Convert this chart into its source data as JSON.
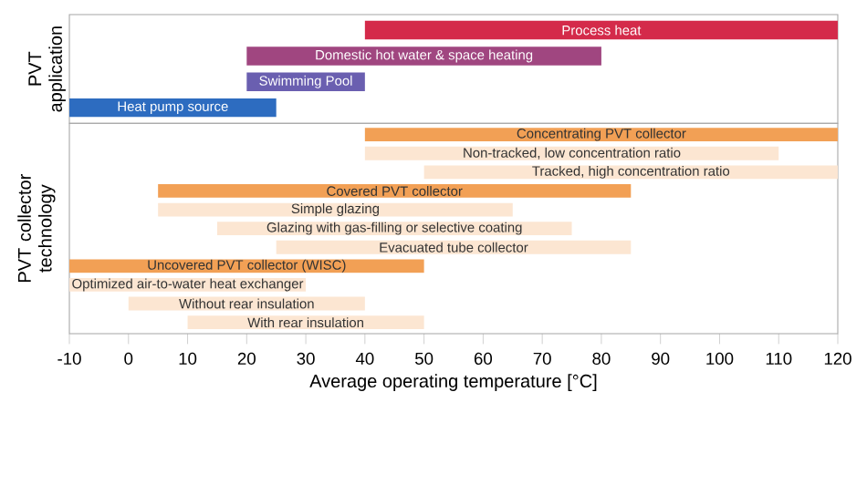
{
  "chart_data": [
    {
      "type": "bar",
      "orientation": "horizontal",
      "ylabel": "PVT application",
      "categories": [
        "Process heat",
        "Domestic hot water & space heating",
        "Swimming Pool",
        "Heat pump source"
      ],
      "base": [
        40,
        20,
        20,
        -10
      ],
      "values": [
        80,
        60,
        20,
        35
      ],
      "colors": [
        "#d42a4a",
        "#a04680",
        "#6a5fb0",
        "#2d6cc0"
      ],
      "xlim": [
        -10,
        120
      ],
      "xticks": [
        -10,
        0,
        10,
        20,
        30,
        40,
        50,
        60,
        70,
        80,
        90,
        100,
        110,
        120
      ],
      "tick_labels": false
    },
    {
      "type": "bar",
      "orientation": "horizontal",
      "ylabel": "PVT collector technology",
      "xlabel": "Average operating temperature [°C]",
      "categories": [
        "Concentrating PVT collector",
        "Non-tracked, low concentration ratio",
        "Tracked, high concentration ratio",
        "Covered PVT collector",
        "Simple glazing",
        "Glazing with gas-filling or selective coating",
        "Evacuated tube collector",
        "Uncovered PVT collector    (WISC)",
        "Optimized air-to-water heat exchanger",
        "Without rear insulation",
        "With rear insulation"
      ],
      "base": [
        40,
        40,
        50,
        5,
        5,
        15,
        25,
        -10,
        -10,
        0,
        10
      ],
      "values": [
        80,
        70,
        70,
        80,
        60,
        60,
        60,
        60,
        40,
        40,
        40
      ],
      "colors": [
        "#f2a055",
        "#fce6d2",
        "#fce6d2",
        "#f2a055",
        "#fce6d2",
        "#fce6d2",
        "#fce6d2",
        "#f2a055",
        "#fce6d2",
        "#fce6d2",
        "#fce6d2"
      ],
      "xlim": [
        -10,
        120
      ],
      "xticks": [
        -10,
        0,
        10,
        20,
        30,
        40,
        50,
        60,
        70,
        80,
        90,
        100,
        110,
        120
      ]
    }
  ]
}
